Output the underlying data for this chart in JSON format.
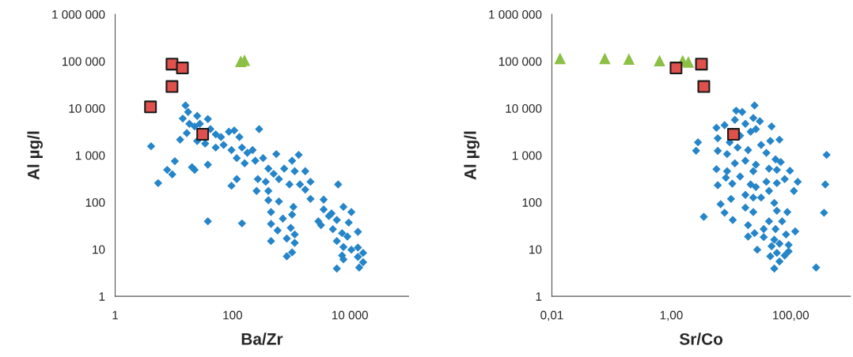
{
  "chart_data": [
    {
      "type": "scatter",
      "xlabel": "Ba/Zr",
      "ylabel": "Al µg/l",
      "log": "xy",
      "grid": false,
      "xlim": [
        1,
        100000
      ],
      "xticks": [
        1,
        100,
        {
          "value": 10000,
          "label": "10 000"
        }
      ],
      "ylim": [
        1,
        1000000
      ],
      "yticks": [
        1,
        10,
        100,
        {
          "value": 1000,
          "label": "1 000"
        },
        {
          "value": 10000,
          "label": "10 000"
        },
        {
          "value": 100000,
          "label": "100 000"
        },
        {
          "value": 1000000,
          "label": "1 000 000"
        }
      ],
      "series": [
        {
          "color": "#2585c8",
          "marker": "diamond",
          "x": [
            15.8,
            17.5,
            14.2,
            25,
            38,
            18.4,
            22.6,
            27.8,
            12.8,
            16.6,
            42,
            51.7,
            63.6,
            86.7,
            107,
            131,
            25,
            34.2,
            51.7,
            70.5,
            96,
            145,
            179,
            220,
            284,
            118,
            161,
            244,
            332,
            557,
            1340,
            1035,
            408,
            502,
            759,
            1148,
            1734,
            270,
            368,
            617,
            933,
            1410,
            2130,
            6300,
            257,
            408,
            1734,
            2130,
            96,
            118,
            4.1,
            10.4,
            7.7,
            9.4,
            5.4,
            20.4,
            22.6,
            38,
            38,
            145,
            408,
            617,
            1090,
            453,
            721,
            1035,
            3570,
            3570,
            4870,
            7760,
            10600,
            2900,
            3220,
            4390,
            5990,
            9540,
            453,
            586,
            982,
            453,
            841,
            1148,
            1148,
            1035,
            841,
            5130,
            7360,
            9060,
            13700,
            5990,
            7760,
            10600,
            13700,
            16800,
            7360,
            7760,
            13700,
            16800,
            5990,
            14400
          ],
          "values": [
            11500,
            8350,
            6050,
            6880,
            5890,
            4670,
            4110,
            4670,
            2150,
            2970,
            3610,
            2790,
            2450,
            3170,
            3380,
            2450,
            2020,
            1780,
            1460,
            1660,
            1290,
            1460,
            1130,
            1290,
            3610,
            873,
            675,
            767,
            873,
            1060,
            1020,
            767,
            521,
            403,
            521,
            458,
            458,
            311,
            273,
            311,
            240,
            240,
            273,
            240,
            174,
            174,
            186,
            118,
            225,
            311,
            1560,
            748,
            489,
            393,
            256,
            556,
            489,
            633,
            39.5,
            35.6,
            111,
            104,
            80,
            62,
            45,
            54.5,
            114,
            70.6,
            58,
            80,
            62,
            39.5,
            32.6,
            51,
            42,
            37,
            34.7,
            25.2,
            28.6,
            15,
            17,
            20.7,
            13.7,
            8.6,
            7.1,
            26.8,
            22.1,
            18.7,
            23.6,
            15,
            11.2,
            9.8,
            10.9,
            8.4,
            7.4,
            6.1,
            6.9,
            5.3,
            3.9,
            4.1
          ]
        },
        {
          "color": "#e0504c",
          "marker": "square",
          "x": [
            9.3,
            14,
            9.3,
            4,
            31
          ],
          "values": [
            87000,
            72000,
            29000,
            10700,
            2800
          ]
        },
        {
          "color": "#8cbf45",
          "marker": "triangle",
          "x": [
            138,
            160
          ],
          "values": [
            100000,
            105000
          ]
        }
      ]
    },
    {
      "type": "scatter",
      "xlabel": "Sr/Co",
      "ylabel": "Al µg/l",
      "log": "xy",
      "grid": false,
      "xlim": [
        0.01,
        1000
      ],
      "xticks": [
        {
          "value": 0.01,
          "label": "0,01"
        },
        {
          "value": 1,
          "label": "1,00"
        },
        {
          "value": 100,
          "label": "100,00"
        }
      ],
      "ylim": [
        1,
        1000000
      ],
      "yticks": [
        1,
        10,
        100,
        {
          "value": 1000,
          "label": "1 000"
        },
        {
          "value": 10000,
          "label": "10 000"
        },
        {
          "value": 100000,
          "label": "100 000"
        },
        {
          "value": 1000000,
          "label": "1 000 000"
        }
      ],
      "series": [
        {
          "color": "#2585c8",
          "marker": "diamond",
          "x": [
            24.8,
            12.2,
            15.4,
            11.6,
            23.6,
            30.4,
            5.7,
            7.8,
            17.4,
            47.8,
            6.0,
            9.5,
            14.2,
            21.3,
            26.1,
            64.8,
            45.5,
            2.8,
            2.6,
            6.0,
            8.6,
            12.9,
            19.3,
            31.9,
            39.1,
            399,
            55.7,
            68.1,
            11.6,
            17.4,
            26.1,
            5.7,
            8.6,
            14.2,
            23.6,
            43.3,
            58.6,
            97,
            6.0,
            10.5,
            8.2,
            21.3,
            26.1,
            39.1,
            58.6,
            79.3,
            131,
            113,
            379,
            6.7,
            10,
            17.4,
            23.6,
            43.3,
            31.9,
            53,
            17.4,
            23.6,
            7.8,
            3.5,
            10.7,
            58.6,
            87.7,
            361,
            43.3,
            71.7,
            19.3,
            35.3,
            55.7,
            119,
            19.3,
            24.8,
            35.3,
            53,
            83.4,
            27.5,
            47.8,
            64.8,
            92.2,
            45.5,
            58.6,
            79.3,
            92.2,
            64.8,
            53,
            266
          ],
          "values": [
            11500,
            8910,
            8350,
            5670,
            6210,
            5310,
            3850,
            4380,
            4670,
            4110,
            2300,
            1890,
            2610,
            3170,
            3610,
            2150,
            2020,
            1890,
            1250,
            1240,
            1060,
            1460,
            1290,
            1660,
            1130,
            1020,
            819,
            719,
            675,
            767,
            633,
            508,
            458,
            354,
            458,
            521,
            489,
            470,
            231,
            250,
            332,
            240,
            211,
            273,
            256,
            311,
            273,
            174,
            240,
            91,
            118,
            144,
            126,
            174,
            126,
            97,
            77,
            62,
            60,
            49,
            42,
            66,
            62,
            60,
            39.5,
            39.5,
            32.6,
            27,
            27,
            24,
            18.7,
            22.1,
            18.2,
            16,
            20.7,
            9.8,
            11.6,
            13.2,
            12.4,
            7.1,
            8.4,
            7.4,
            9.0,
            5.5,
            3.9,
            4.1
          ]
        },
        {
          "color": "#e0504c",
          "marker": "square",
          "x": [
            1.2,
            3.2,
            3.5,
            11
          ],
          "values": [
            72000,
            87000,
            29000,
            2790
          ]
        },
        {
          "color": "#8cbf45",
          "marker": "triangle",
          "x": [
            0.0137,
            0.077,
            0.195,
            0.635,
            1.55,
            1.93
          ],
          "values": [
            115000,
            115000,
            112000,
            103000,
            103000,
            97000
          ]
        }
      ]
    }
  ]
}
